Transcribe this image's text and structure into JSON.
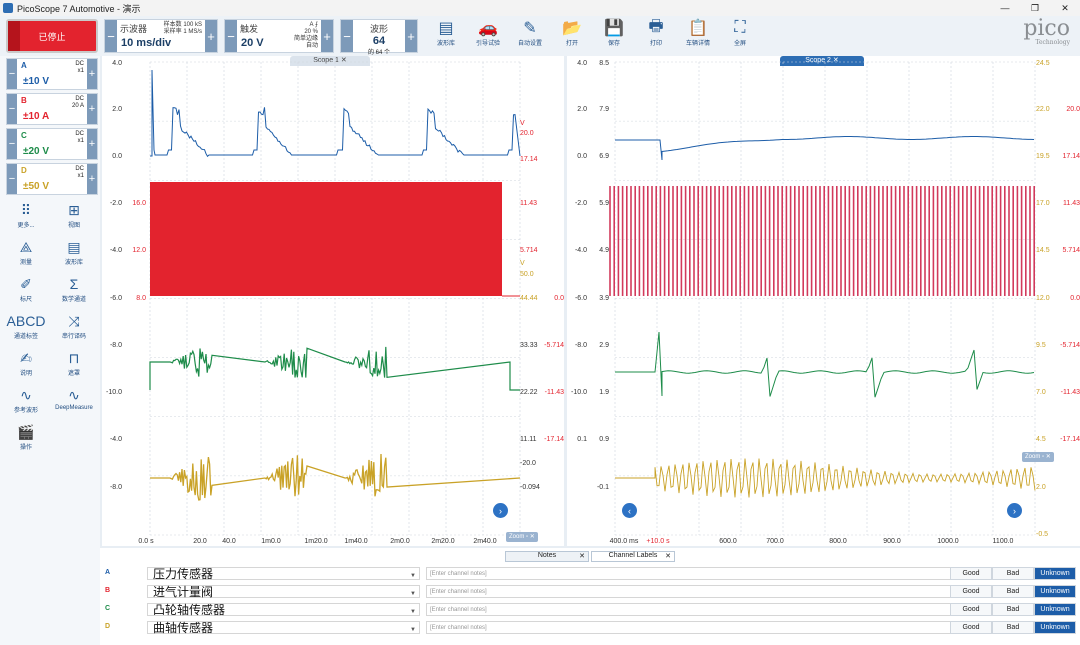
{
  "window": {
    "title": "PicoScope 7 Automotive - 演示",
    "controls": [
      "—",
      "❐",
      "✕"
    ]
  },
  "toolbar": {
    "stop_label": "已停止",
    "scope": {
      "label": "示波器",
      "value": "10 ms/div",
      "samples_label": "样本数",
      "samples": "100 kS",
      "rate_label": "采样率",
      "rate": "1 MS/s"
    },
    "trigger": {
      "label": "触发",
      "value": "20 V",
      "pct": "20 %",
      "mode1": "简单边缘",
      "mode2": "自动"
    },
    "waveform": {
      "label": "波形",
      "value": "64",
      "of": "的 64 个"
    },
    "buttons": [
      {
        "label": "波形库",
        "icon": "library-icon",
        "glyph": "▤"
      },
      {
        "label": "引导试验",
        "icon": "car-icon",
        "glyph": "🚗"
      },
      {
        "label": "自动设置",
        "icon": "wand-icon",
        "glyph": "✎"
      },
      {
        "label": "打开",
        "icon": "folder-icon",
        "glyph": "📂"
      },
      {
        "label": "保存",
        "icon": "save-icon",
        "glyph": "💾"
      },
      {
        "label": "打印",
        "icon": "print-icon",
        "glyph": "🖶"
      },
      {
        "label": "车辆详情",
        "icon": "clipboard-icon",
        "glyph": "📋"
      },
      {
        "label": "全屏",
        "icon": "fullscreen-icon",
        "glyph": "⛶"
      }
    ],
    "logo": "pico",
    "logo_sub": "Technology"
  },
  "channels": [
    {
      "name": "A",
      "coupling": "DC",
      "probe": "x1",
      "range": "±10 V",
      "color": "#1d5da8"
    },
    {
      "name": "B",
      "coupling": "DC",
      "probe": "20 A",
      "range": "±10 A",
      "color": "#e3232e"
    },
    {
      "name": "C",
      "coupling": "DC",
      "probe": "x1",
      "range": "±20 V",
      "color": "#1e8c4a"
    },
    {
      "name": "D",
      "coupling": "DC",
      "probe": "x1",
      "range": "±50 V",
      "color": "#c9a227"
    }
  ],
  "tools": [
    {
      "label": "更多...",
      "icon": "more-icon",
      "glyph": "⠿"
    },
    {
      "label": "视图",
      "icon": "view-icon",
      "glyph": "⊞"
    },
    {
      "label": "测量",
      "icon": "measure-icon",
      "glyph": "⟁"
    },
    {
      "label": "波形库",
      "icon": "library-icon",
      "glyph": "▤"
    },
    {
      "label": "标尺",
      "icon": "ruler-icon",
      "glyph": "✐"
    },
    {
      "label": "数学通道",
      "icon": "math-icon",
      "glyph": "Σ"
    },
    {
      "label": "通道标签",
      "icon": "channel-label-icon",
      "glyph": "ABCD"
    },
    {
      "label": "串行译码",
      "icon": "serial-decode-icon",
      "glyph": "⤨"
    },
    {
      "label": "说明",
      "icon": "note-icon",
      "glyph": "✍"
    },
    {
      "label": "遮罩",
      "icon": "mask-icon",
      "glyph": "⊓"
    },
    {
      "label": "参考波形",
      "icon": "reference-icon",
      "glyph": "∿"
    },
    {
      "label": "DeepMeasure",
      "icon": "deepmeasure-icon",
      "glyph": "∿"
    },
    {
      "label": "操作",
      "icon": "action-icon",
      "glyph": "🎬"
    }
  ],
  "scope1": {
    "tab": "Scope 1",
    "xticks": [
      "0.0 s",
      "20.0",
      "40.0",
      "1m0.0",
      "1m20.0",
      "1m40.0",
      "2m0.0",
      "2m20.0",
      "2m40.0"
    ],
    "left_axis": [
      "4.0",
      "2.0",
      "0.0",
      "-2.0",
      "-4.0",
      "-6.0",
      "-8.0",
      "-10.0",
      "-4.0",
      "-8.0"
    ],
    "b_axis": [
      "16.0",
      "12.0",
      "8.0"
    ],
    "right_axis": [
      "V",
      "20.0",
      "17.14",
      "11.43",
      "5.714",
      "V",
      "50.0",
      "44.44",
      "33.33",
      "22.22",
      "11.11",
      "-20.0",
      "-0.094"
    ],
    "right_axis2": [
      "0.0",
      "-5.714",
      "-11.43",
      "-17.14"
    ],
    "zoom": "Zoom"
  },
  "scope2": {
    "tab": "Scope 2",
    "xticks": [
      "400.0 ms",
      "+10.0 s",
      "600.0",
      "700.0",
      "800.0",
      "900.0",
      "1000.0",
      "1100.0"
    ],
    "left_axis": [
      "4.0",
      "2.0",
      "0.0",
      "-2.0",
      "-4.0",
      "-6.0",
      "-8.0",
      "-10.0",
      "0.1"
    ],
    "left_axis2": [
      "8.5",
      "7.9",
      "6.9",
      "5.9",
      "4.9",
      "3.9",
      "2.9",
      "1.9",
      "0.9",
      "-0.1"
    ],
    "right_axis": [
      "24.5",
      "22.0",
      "19.5",
      "17.0",
      "14.5",
      "12.0",
      "9.5",
      "7.0",
      "4.5",
      "2.0",
      "-0.5"
    ],
    "right_axis2": [
      "20.0",
      "17.14",
      "11.43",
      "5.714",
      "0.0",
      "-5.714",
      "-11.43",
      "-17.14"
    ],
    "zoom": "Zoom"
  },
  "bottom": {
    "tabs": [
      "Notes",
      "Channel Labels"
    ],
    "rows": [
      {
        "ch": "A",
        "label": "压力传感器",
        "note": "[Enter channel notes]",
        "color": "#1d5da8"
      },
      {
        "ch": "B",
        "label": "进气计量阀",
        "note": "[Enter channel notes]",
        "color": "#e3232e"
      },
      {
        "ch": "C",
        "label": "凸轮轴传感器",
        "note": "[Enter channel notes]",
        "color": "#1e8c4a"
      },
      {
        "ch": "D",
        "label": "曲轴传感器",
        "note": "[Enter channel notes]",
        "color": "#c9a227"
      }
    ],
    "good": "Good",
    "bad": "Bad",
    "unknown": "Unknown"
  }
}
